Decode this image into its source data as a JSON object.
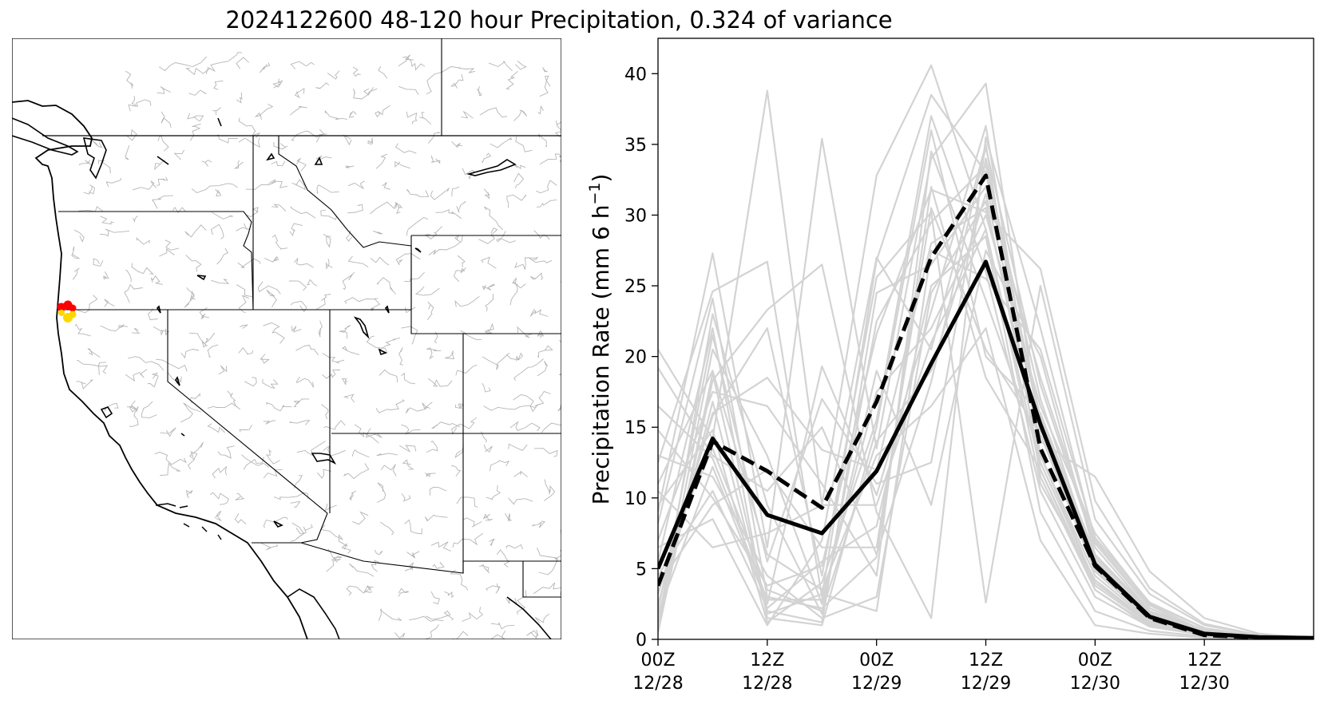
{
  "title": "2024122600 48-120 hour Precipitation, 0.324 of variance",
  "map": {
    "highlight_colors": [
      "#ff0000",
      "#ffd700"
    ]
  },
  "chart_data": {
    "type": "line",
    "ylabel": "Precipitation Rate (mm 6 h",
    "ylabel_superscript": "−1",
    "ylabel_suffix": ")",
    "ylim": [
      0,
      42.5
    ],
    "yticks": [
      0,
      5,
      10,
      15,
      20,
      25,
      30,
      35,
      40
    ],
    "x": [
      "12/28 00Z",
      "12/28 06Z",
      "12/28 12Z",
      "12/28 18Z",
      "12/29 00Z",
      "12/29 06Z",
      "12/29 12Z",
      "12/29 18Z",
      "12/30 00Z",
      "12/30 06Z",
      "12/30 12Z",
      "12/30 18Z",
      "12/31 00Z"
    ],
    "xticks": [
      {
        "index": 0,
        "line1": "00Z",
        "line2": "12/28"
      },
      {
        "index": 2,
        "line1": "12Z",
        "line2": "12/28"
      },
      {
        "index": 4,
        "line1": "00Z",
        "line2": "12/29"
      },
      {
        "index": 6,
        "line1": "12Z",
        "line2": "12/29"
      },
      {
        "index": 8,
        "line1": "00Z",
        "line2": "12/30"
      },
      {
        "index": 10,
        "line1": "12Z",
        "line2": "12/30"
      }
    ],
    "grid": false,
    "ensemble_color": "#d3d3d3",
    "series": [
      {
        "style": "solid",
        "color": "#000000",
        "values": [
          5.0,
          14.2,
          8.8,
          7.5,
          11.9,
          19.5,
          26.7,
          15.2,
          5.3,
          1.6,
          0.4,
          0.15,
          0.1
        ]
      },
      {
        "style": "dashed",
        "color": "#000000",
        "values": [
          3.8,
          14.0,
          11.9,
          9.3,
          16.8,
          27.0,
          32.8,
          13.5,
          5.2,
          1.5,
          0.3,
          0.12,
          0.08
        ]
      }
    ],
    "ensemble": [
      [
        20.5,
        14.2,
        38.8,
        9.5,
        32.8,
        40.6,
        29.0,
        11.0,
        4.2,
        1.2,
        0.3,
        0.1,
        0.05
      ],
      [
        9.0,
        27.3,
        6.5,
        35.4,
        13.5,
        34.0,
        39.3,
        14.5,
        5.0,
        1.4,
        0.4,
        0.1,
        0.05
      ],
      [
        12.5,
        24.6,
        26.7,
        3.0,
        26.8,
        38.5,
        33.0,
        15.7,
        5.6,
        1.7,
        0.5,
        0.15,
        0.05
      ],
      [
        0.5,
        18.3,
        23.3,
        26.5,
        9.0,
        1.5,
        35.5,
        22.0,
        7.0,
        2.4,
        0.6,
        0.2,
        0.1
      ],
      [
        14.8,
        10.0,
        3.8,
        5.2,
        21.6,
        31.8,
        30.2,
        26.2,
        9.8,
        3.6,
        1.1,
        0.3,
        0.1
      ],
      [
        5.5,
        22.0,
        1.5,
        1.0,
        15.0,
        36.0,
        20.0,
        16.0,
        6.0,
        2.0,
        0.5,
        0.15,
        0.05
      ],
      [
        19.2,
        13.0,
        10.5,
        15.0,
        6.0,
        18.2,
        34.8,
        18.0,
        6.5,
        2.0,
        0.7,
        0.2,
        0.1
      ],
      [
        3.2,
        15.8,
        22.0,
        4.5,
        25.6,
        30.2,
        2.6,
        25.0,
        8.5,
        3.2,
        1.0,
        0.3,
        0.1
      ],
      [
        1.8,
        12.2,
        2.5,
        19.3,
        10.2,
        23.2,
        36.3,
        13.0,
        4.5,
        1.3,
        0.4,
        0.1,
        0.05
      ],
      [
        8.2,
        24.1,
        3.0,
        2.2,
        5.8,
        32.0,
        18.5,
        12.0,
        3.5,
        0.9,
        0.3,
        0.1,
        0.05
      ],
      [
        2.5,
        16.0,
        18.5,
        13.4,
        12.0,
        28.0,
        30.5,
        14.0,
        11.5,
        4.8,
        1.5,
        0.4,
        0.1
      ],
      [
        13.0,
        11.5,
        4.5,
        1.5,
        3.0,
        24.5,
        31.0,
        12.5,
        4.0,
        1.2,
        0.3,
        0.1,
        0.05
      ],
      [
        0.8,
        20.5,
        13.0,
        2.5,
        19.0,
        9.5,
        27.5,
        20.0,
        6.0,
        2.0,
        0.6,
        0.2,
        0.05
      ],
      [
        6.5,
        8.5,
        1.0,
        7.0,
        27.0,
        20.5,
        35.0,
        11.5,
        3.5,
        1.0,
        0.3,
        0.1,
        0.05
      ],
      [
        11.0,
        19.0,
        6.0,
        3.5,
        13.0,
        16.5,
        22.0,
        7.0,
        1.0,
        0.4,
        0.1,
        0.05,
        0.02
      ],
      [
        4.5,
        10.5,
        2.2,
        5.5,
        8.0,
        25.0,
        28.5,
        9.0,
        2.0,
        0.6,
        0.2,
        0.05,
        0.02
      ],
      [
        1.0,
        23.0,
        9.5,
        1.8,
        22.5,
        29.5,
        33.5,
        17.0,
        5.5,
        1.8,
        0.5,
        0.15,
        0.05
      ],
      [
        7.0,
        17.5,
        16.5,
        11.0,
        4.5,
        34.5,
        24.0,
        13.0,
        4.0,
        1.2,
        0.4,
        0.1,
        0.05
      ],
      [
        16.5,
        12.8,
        2.8,
        2.8,
        17.5,
        22.0,
        30.0,
        16.5,
        7.5,
        2.5,
        0.8,
        0.2,
        0.05
      ],
      [
        2.0,
        21.5,
        5.5,
        17.0,
        11.0,
        12.5,
        34.0,
        15.0,
        5.0,
        1.6,
        0.5,
        0.15,
        0.05
      ],
      [
        9.5,
        14.8,
        1.2,
        4.0,
        15.5,
        37.0,
        26.0,
        10.5,
        3.0,
        0.9,
        0.3,
        0.1,
        0.05
      ],
      [
        3.8,
        9.5,
        12.0,
        6.5,
        6.5,
        30.5,
        20.5,
        14.5,
        4.8,
        1.4,
        0.4,
        0.1,
        0.05
      ],
      [
        0.5,
        18.8,
        2.0,
        1.2,
        24.5,
        26.5,
        32.0,
        18.5,
        6.8,
        2.2,
        0.6,
        0.2,
        0.05
      ],
      [
        10.5,
        6.5,
        7.5,
        9.5,
        9.5,
        21.0,
        29.0,
        12.0,
        3.8,
        1.1,
        0.3,
        0.1,
        0.05
      ],
      [
        5.0,
        13.5,
        3.5,
        2.0,
        14.0,
        19.0,
        31.5,
        15.5,
        5.8,
        1.9,
        0.6,
        0.15,
        0.05
      ],
      [
        1.5,
        16.8,
        1.8,
        3.2,
        2.0,
        27.5,
        25.5,
        20.5,
        7.2,
        2.6,
        0.8,
        0.2,
        0.05
      ]
    ]
  }
}
